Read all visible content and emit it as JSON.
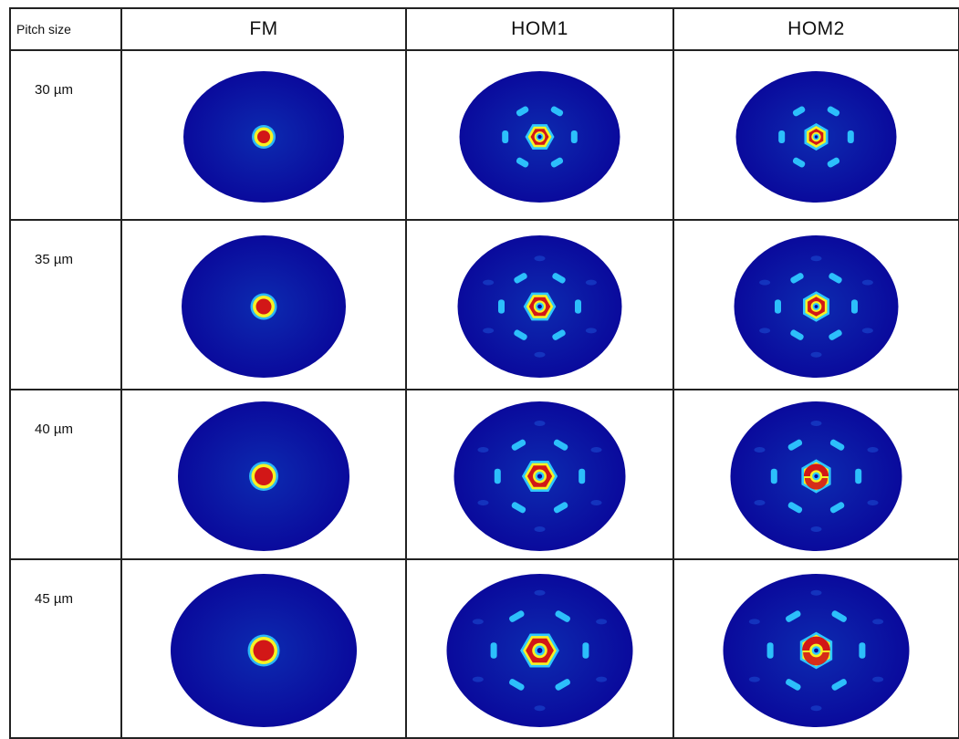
{
  "table": {
    "corner_label": "Pitch size",
    "columns": [
      "FM",
      "HOM1",
      "HOM2"
    ],
    "rows": [
      {
        "pitch": "30 µm"
      },
      {
        "pitch": "35 µm"
      },
      {
        "pitch": "40 µm"
      },
      {
        "pitch": "45 µm"
      }
    ]
  },
  "colors": {
    "background_field": "#0a1f9c",
    "cold": "#0a0a9c",
    "cyan": "#2ec8ff",
    "yellow": "#f7f223",
    "red": "#d21717",
    "grid": "#222222"
  },
  "mode_types": [
    "FM",
    "HOM1",
    "HOM2"
  ]
}
